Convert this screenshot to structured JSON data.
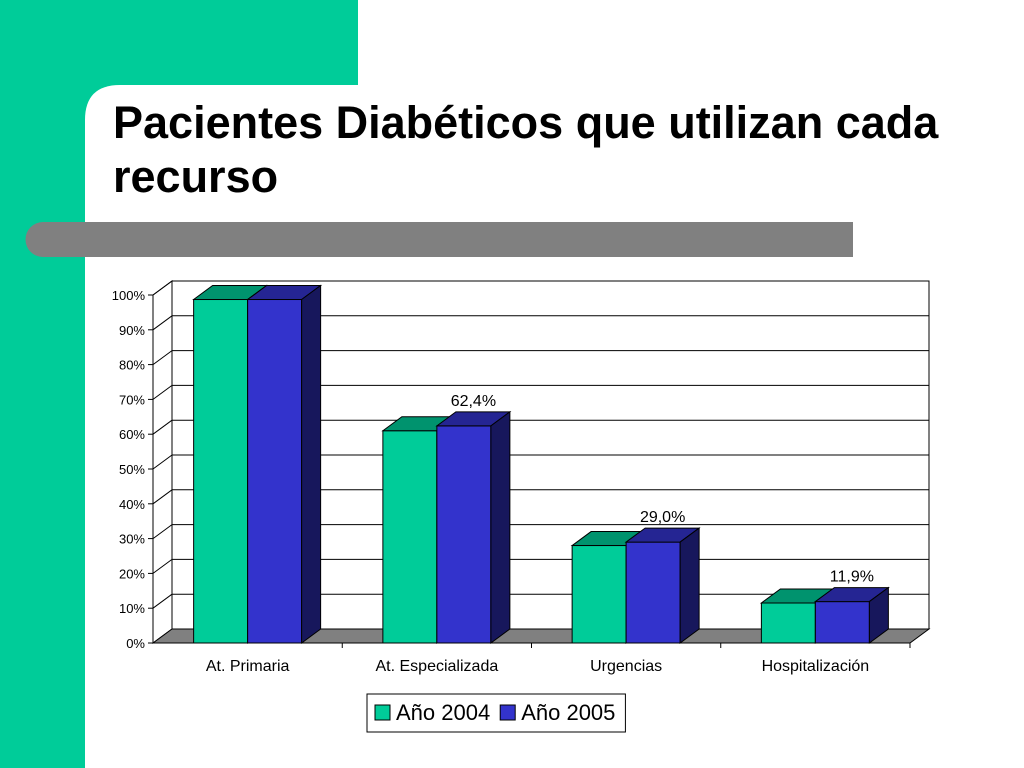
{
  "slide": {
    "title": "Pacientes Diabéticos que utilizan cada recurso",
    "colors": {
      "accent": "#00cc99",
      "band": "#808080",
      "background": "#ffffff"
    }
  },
  "chart_data": {
    "type": "bar",
    "title": "",
    "xlabel": "",
    "ylabel": "",
    "ylim": [
      0,
      100
    ],
    "y_ticks": [
      "0%",
      "10%",
      "20%",
      "30%",
      "40%",
      "50%",
      "60%",
      "70%",
      "80%",
      "90%",
      "100%"
    ],
    "categories": [
      "At. Primaria",
      "At. Especializada",
      "Urgencias",
      "Hospitalización"
    ],
    "series": [
      {
        "name": "Año 2004",
        "values": [
          98.7,
          61.0,
          28.0,
          11.5
        ],
        "color": "#00cc99"
      },
      {
        "name": "Año 2005",
        "values": [
          98.7,
          62.4,
          29.0,
          11.9
        ],
        "color": "#3333cc"
      }
    ],
    "data_labels": [
      {
        "category": "At. Especializada",
        "series": "Año 2005",
        "text": "62,4%"
      },
      {
        "category": "Urgencias",
        "series": "Año 2005",
        "text": "29,0%"
      },
      {
        "category": "Hospitalización",
        "series": "Año 2005",
        "text": "11,9%"
      }
    ],
    "grid": true,
    "three_d": true,
    "legend_position": "bottom"
  }
}
